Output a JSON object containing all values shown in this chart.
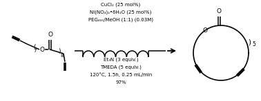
{
  "bg_color": "#ffffff",
  "text_color": "#000000",
  "above_arrow_lines": [
    "CuCl₂ (25 mol%)",
    "Ni(NO₃)₂•6H₂O (25 mol%)",
    "PEG₄₀₀/MeOH (1:1) (0.03M)"
  ],
  "below_arrow_lines": [
    "Et₃N (3 equiv.)",
    "TMEDA (5 equiv.)",
    "120°C, 1.5h, 0.25 mL/min",
    "97%"
  ],
  "font_size_main": 6.5,
  "font_size_small": 5.5
}
